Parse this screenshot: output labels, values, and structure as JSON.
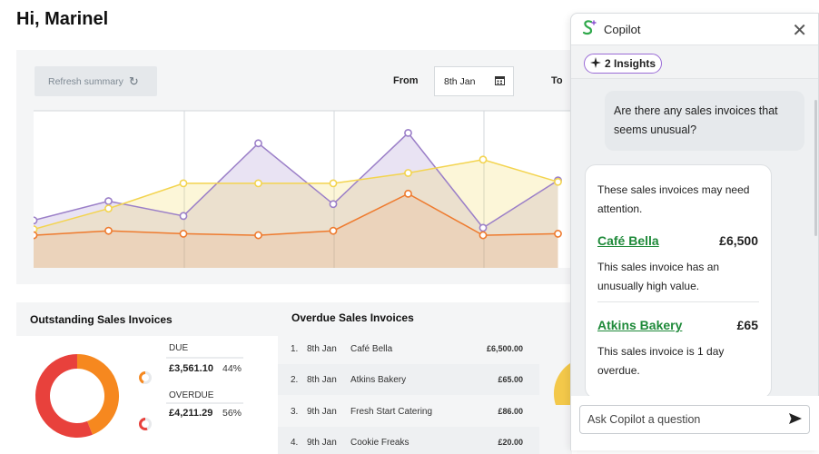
{
  "greeting": "Hi, Marinel",
  "toolbar": {
    "refresh_label": "Refresh summary",
    "from_label": "From",
    "from_value": "8th Jan",
    "to_label": "To"
  },
  "chart_data": {
    "type": "area",
    "series": [
      {
        "values": [
          32,
          45,
          35,
          84,
          43,
          91,
          27,
          59
        ]
      },
      {
        "values": [
          26,
          40,
          57,
          57,
          57,
          64,
          73,
          58
        ]
      },
      {
        "values": [
          22,
          25,
          23,
          22,
          25,
          50,
          22,
          23
        ]
      }
    ],
    "ylim": [
      0,
      120
    ],
    "colors": [
      "#9b7fc8",
      "#f3d44f",
      "#ee7b2f"
    ]
  },
  "outstanding": {
    "title": "Outstanding Sales Invoices",
    "due_label": "DUE",
    "due_amount": "£3,561.10",
    "due_pct": "44%",
    "overdue_label": "OVERDUE",
    "overdue_amount": "£4,211.29",
    "overdue_pct": "56%",
    "donut": {
      "due_fraction": 0.44,
      "due_color": "#f6881f",
      "overdue_color": "#e8413c"
    }
  },
  "overdue": {
    "title": "Overdue Sales Invoices",
    "rows": [
      {
        "num": "1.",
        "date": "8th Jan",
        "customer": "Café Bella",
        "amount": "£6,500.00"
      },
      {
        "num": "2.",
        "date": "8th Jan",
        "customer": "Atkins Bakery",
        "amount": "£65.00"
      },
      {
        "num": "3.",
        "date": "9th Jan",
        "customer": "Fresh Start Catering",
        "amount": "£86.00"
      },
      {
        "num": "4.",
        "date": "9th Jan",
        "customer": "Cookie Freaks",
        "amount": "£20.00"
      }
    ]
  },
  "copilot": {
    "title": "Copilot",
    "insights": "2 Insights",
    "user_message": "Are there any sales invoices that seems unusual?",
    "ai_intro": "These sales invoices may need attention.",
    "items": [
      {
        "name": "Café Bella",
        "amount": "£6,500",
        "desc": "This sales invoice has an unusually high value."
      },
      {
        "name": "Atkins Bakery",
        "amount": "£65",
        "desc": "This sales invoice is 1 day overdue."
      }
    ],
    "input_placeholder": "Ask Copilot a question",
    "brand_color": "#1f8a3a"
  }
}
